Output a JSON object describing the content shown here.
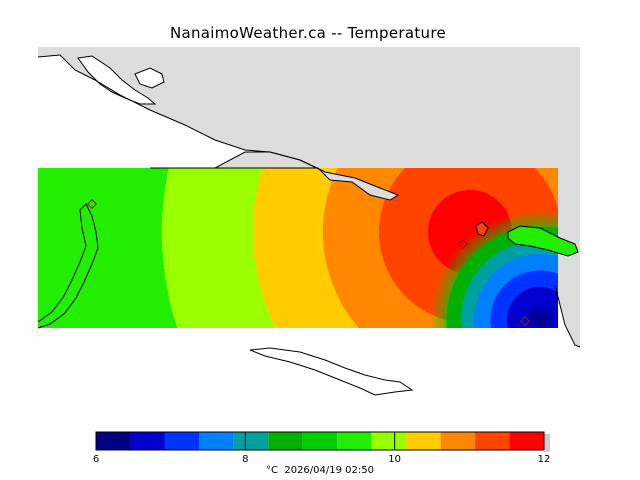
{
  "title": "NanaimoWeather.ca -- Temperature",
  "colorbar": {
    "tick_labels": [
      "6",
      "8",
      "10",
      "12"
    ],
    "min": 6,
    "max": 12,
    "colors": [
      "#000080",
      "#0000cc",
      "#0033ff",
      "#0080ff",
      "#00a0a0",
      "#00b000",
      "#00cc00",
      "#22ee00",
      "#99ff00",
      "#ffcc00",
      "#ff8800",
      "#ff4400",
      "#ff0000"
    ],
    "unit": "°C",
    "timestamp": "2026/04/19 02:50",
    "caption": "°C  2026/04/19 02:50"
  },
  "map": {
    "land_color": "#dcdcdc",
    "water_color": "#ffffff",
    "coastline_color": "#000000",
    "station_marker_color": "#8b1a1a"
  }
}
